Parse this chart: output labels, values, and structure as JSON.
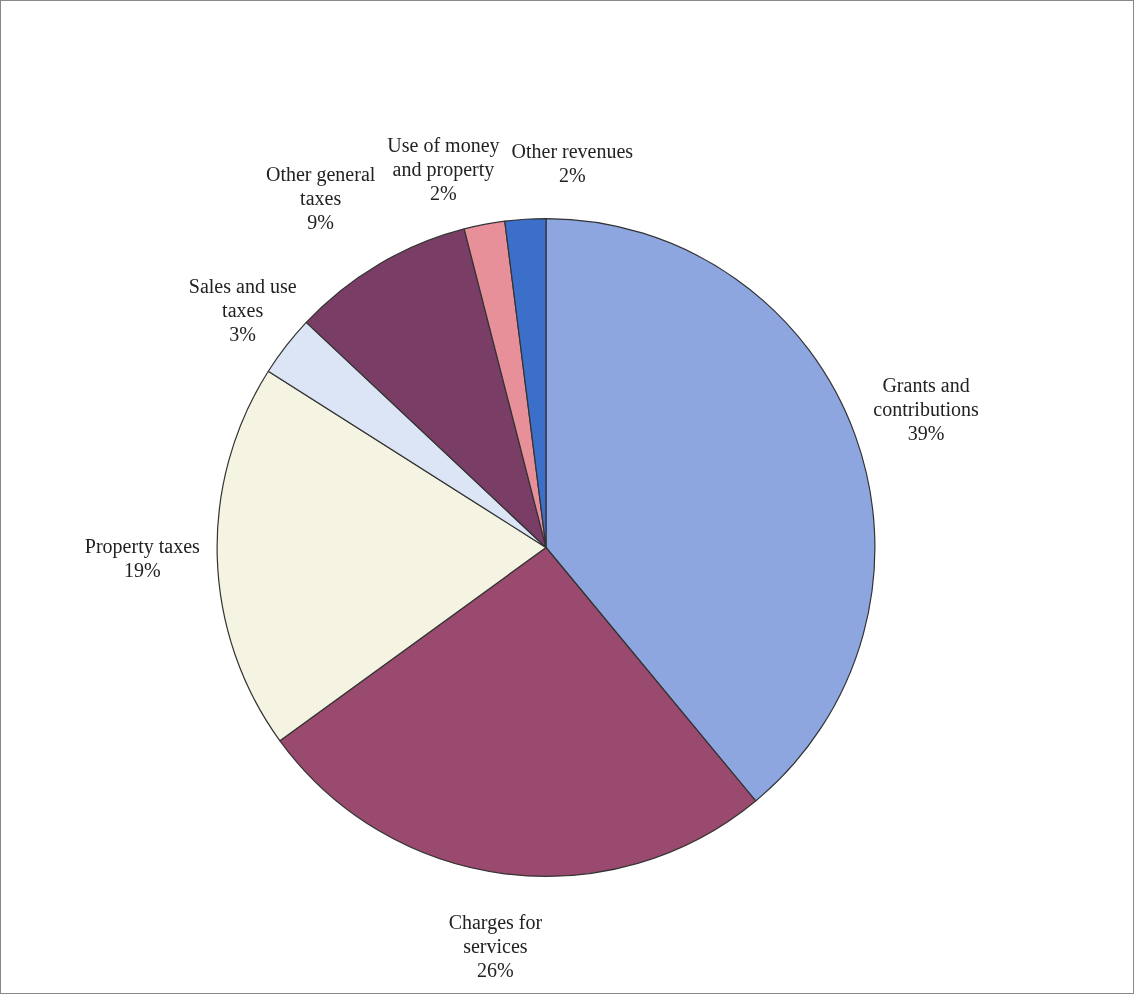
{
  "chart_data": {
    "type": "pie",
    "categories": [
      "Grants and contributions",
      "Charges for services",
      "Property taxes",
      "Sales and use taxes",
      "Other general taxes",
      "Use of money and property",
      "Other revenues"
    ],
    "values": [
      39,
      26,
      19,
      3,
      9,
      2,
      2
    ],
    "value_labels": [
      "39%",
      "26%",
      "19%",
      "3%",
      "9%",
      "2%",
      "2%"
    ],
    "colors": [
      "#8ea6e0",
      "#9a4a6e",
      "#f5f3e2",
      "#dbe5f5",
      "#7a3e66",
      "#e8909a",
      "#3b6fc9"
    ],
    "legend": false
  }
}
